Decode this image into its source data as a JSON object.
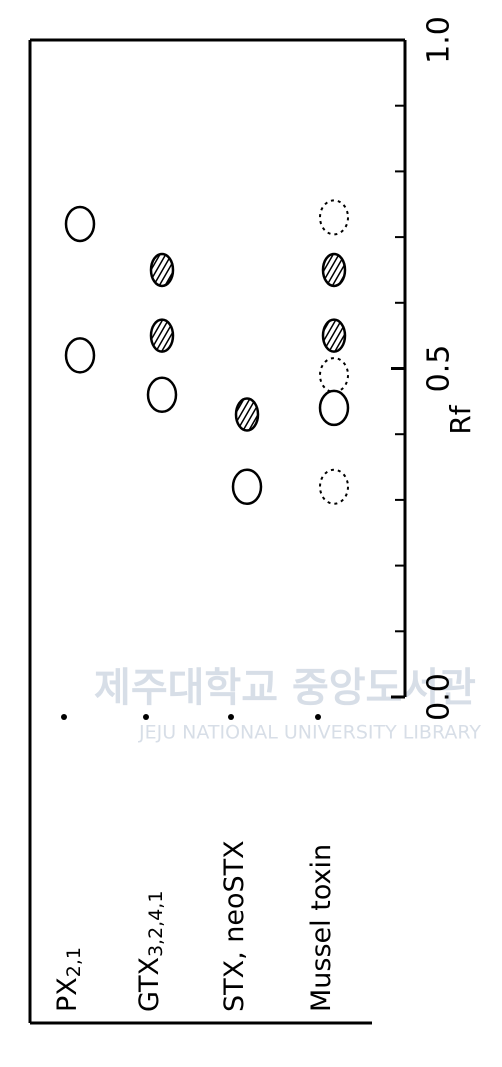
{
  "chart_data": {
    "type": "tlc",
    "axis_label": "Rf",
    "ylim": [
      0,
      1
    ],
    "yticks": [
      {
        "value": 0,
        "label": "0.0"
      },
      {
        "value": 0.5,
        "label": "0.5"
      },
      {
        "value": 1,
        "label": "1.0"
      }
    ],
    "minor_ticks": [
      0.1,
      0.2,
      0.3,
      0.4,
      0.6,
      0.7,
      0.8,
      0.9
    ],
    "watermark": {
      "title": "제주대학교 중앙도서관",
      "subtitle": "JEJU NATIONAL UNIVERSITY LIBRARY"
    },
    "lanes": [
      {
        "name": "PX",
        "sub": "2,1",
        "spots": [
          {
            "rf": 0.72,
            "style": "open"
          },
          {
            "rf": 0.52,
            "style": "open"
          }
        ]
      },
      {
        "name": "GTX",
        "sub": "3,2,4,1",
        "spots": [
          {
            "rf": 0.65,
            "style": "hatched"
          },
          {
            "rf": 0.55,
            "style": "hatched"
          },
          {
            "rf": 0.46,
            "style": "open"
          }
        ]
      },
      {
        "name": "STX, neoSTX",
        "spots": [
          {
            "rf": 0.43,
            "style": "hatched"
          },
          {
            "rf": 0.32,
            "style": "open"
          }
        ]
      },
      {
        "name": "Mussel toxin",
        "spots": [
          {
            "rf": 0.73,
            "style": "dotted"
          },
          {
            "rf": 0.65,
            "style": "hatched"
          },
          {
            "rf": 0.55,
            "style": "hatched"
          },
          {
            "rf": 0.49,
            "style": "dotted"
          },
          {
            "rf": 0.44,
            "style": "open"
          },
          {
            "rf": 0.32,
            "style": "dotted"
          }
        ]
      }
    ]
  }
}
